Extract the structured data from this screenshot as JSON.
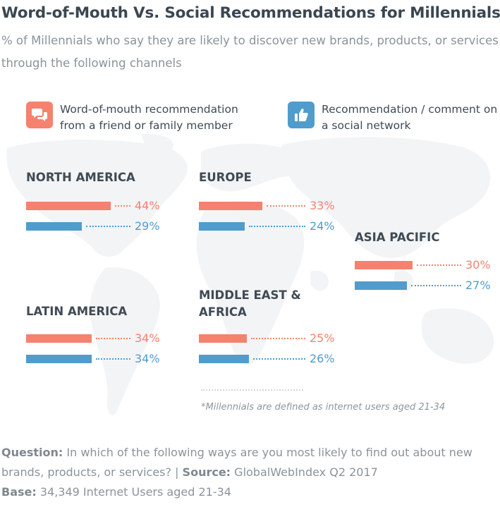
{
  "title": "Word-of-Mouth Vs. Social Recommendations for Millennials*",
  "subtitle": "% of Millennials who say they are likely to discover new brands, products, or services through the following channels",
  "colors": {
    "word_of_mouth": "#f4826e",
    "social": "#4f9ccd",
    "map": "#f3f4f6"
  },
  "legend": [
    {
      "icon": "speech-bubbles-icon",
      "label": "Word-of-mouth recommendation from a friend or family member"
    },
    {
      "icon": "thumbs-up-icon",
      "label": "Recommendation / comment on a social network"
    }
  ],
  "chart_data": {
    "type": "bar",
    "xlim": [
      0,
      100
    ],
    "series": [
      {
        "key": "word_of_mouth"
      },
      {
        "key": "social"
      }
    ],
    "regions": [
      {
        "name": "NORTH AMERICA",
        "values": [
          44,
          29
        ],
        "labels": [
          "44%",
          "29%"
        ]
      },
      {
        "name": "EUROPE",
        "values": [
          33,
          24
        ],
        "labels": [
          "33%",
          "24%"
        ]
      },
      {
        "name": "ASIA PACIFIC",
        "values": [
          30,
          27
        ],
        "labels": [
          "30%",
          "27%"
        ]
      },
      {
        "name": "LATIN AMERICA",
        "values": [
          34,
          34
        ],
        "labels": [
          "34%",
          "34%"
        ]
      },
      {
        "name": "MIDDLE EAST & AFRICA",
        "values": [
          25,
          26
        ],
        "labels": [
          "25%",
          "26%"
        ]
      }
    ]
  },
  "footnote": "*Millennials are defined as internet users aged 21-34",
  "question": {
    "label": "Question:",
    "text": " In which of the following ways are you most likely to find out about new"
  },
  "question_line2": {
    "text": "brands, products, or services? | ",
    "source_label": "Source:",
    "source_text": " GlobalWebIndex Q2 2017"
  },
  "base": {
    "label": "Base:",
    "text": " 34,349 Internet Users aged 21-34"
  }
}
